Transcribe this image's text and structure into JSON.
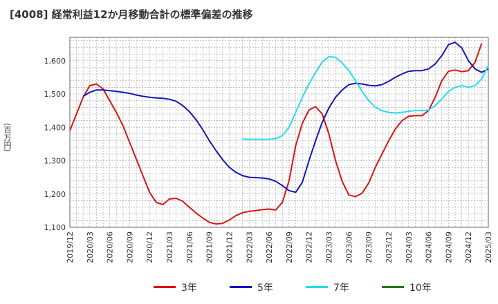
{
  "chart_data": {
    "type": "line",
    "title": "[4008]  経常利益12か月移動合計の標準偏差の推移",
    "ylabel": "(百万円)",
    "xlabel": "",
    "ylim": [
      1100,
      1670
    ],
    "y_ticks": [
      "1,100",
      "1,200",
      "1,300",
      "1,400",
      "1,500",
      "1,600"
    ],
    "y_tick_values": [
      1100,
      1200,
      1300,
      1400,
      1500,
      1600
    ],
    "x_ticks": [
      "2019/12",
      "2020/03",
      "2020/06",
      "2020/09",
      "2020/12",
      "2021/03",
      "2021/06",
      "2021/09",
      "2021/12",
      "2022/03",
      "2022/06",
      "2022/09",
      "2022/12",
      "2023/03",
      "2023/06",
      "2023/09",
      "2023/12",
      "2024/03",
      "2024/06",
      "2024/09",
      "2024/12",
      "2025/03"
    ],
    "x_start": "2019/12",
    "grid": true,
    "legend_position": "bottom",
    "series": [
      {
        "name": "3年",
        "color": "#dd1111",
        "start": "2019/12",
        "values": [
          1390,
          1440,
          1490,
          1525,
          1530,
          1515,
          1480,
          1445,
          1405,
          1355,
          1305,
          1255,
          1205,
          1175,
          1168,
          1185,
          1187,
          1178,
          1160,
          1143,
          1128,
          1115,
          1110,
          1112,
          1122,
          1135,
          1144,
          1148,
          1150,
          1153,
          1155,
          1152,
          1175,
          1240,
          1345,
          1412,
          1452,
          1462,
          1440,
          1380,
          1300,
          1238,
          1197,
          1192,
          1202,
          1233,
          1280,
          1320,
          1360,
          1395,
          1420,
          1433,
          1435,
          1435,
          1450,
          1490,
          1540,
          1568,
          1572,
          1567,
          1570,
          1595,
          1652
        ]
      },
      {
        "name": "5年",
        "color": "#1515bb",
        "start": "2020/02",
        "values": [
          1493,
          1505,
          1512,
          1512,
          1510,
          1508,
          1505,
          1502,
          1497,
          1493,
          1490,
          1488,
          1487,
          1484,
          1478,
          1465,
          1447,
          1423,
          1393,
          1360,
          1330,
          1303,
          1280,
          1265,
          1255,
          1250,
          1249,
          1248,
          1245,
          1238,
          1225,
          1210,
          1205,
          1235,
          1300,
          1360,
          1415,
          1458,
          1490,
          1512,
          1528,
          1532,
          1530,
          1526,
          1524,
          1528,
          1538,
          1550,
          1560,
          1568,
          1570,
          1570,
          1575,
          1590,
          1615,
          1648,
          1655,
          1638,
          1600,
          1575,
          1565,
          1575
        ]
      },
      {
        "name": "7年",
        "color": "#22ddee",
        "start": "2022/02",
        "values": [
          1365,
          1364,
          1364,
          1364,
          1364,
          1366,
          1375,
          1400,
          1445,
          1490,
          1530,
          1565,
          1596,
          1612,
          1610,
          1593,
          1570,
          1540,
          1508,
          1480,
          1460,
          1450,
          1445,
          1443,
          1445,
          1448,
          1450,
          1450,
          1452,
          1465,
          1485,
          1508,
          1520,
          1525,
          1520,
          1525,
          1545,
          1585
        ]
      },
      {
        "name": "10年",
        "color": "#227722",
        "start": "",
        "values": []
      }
    ]
  }
}
